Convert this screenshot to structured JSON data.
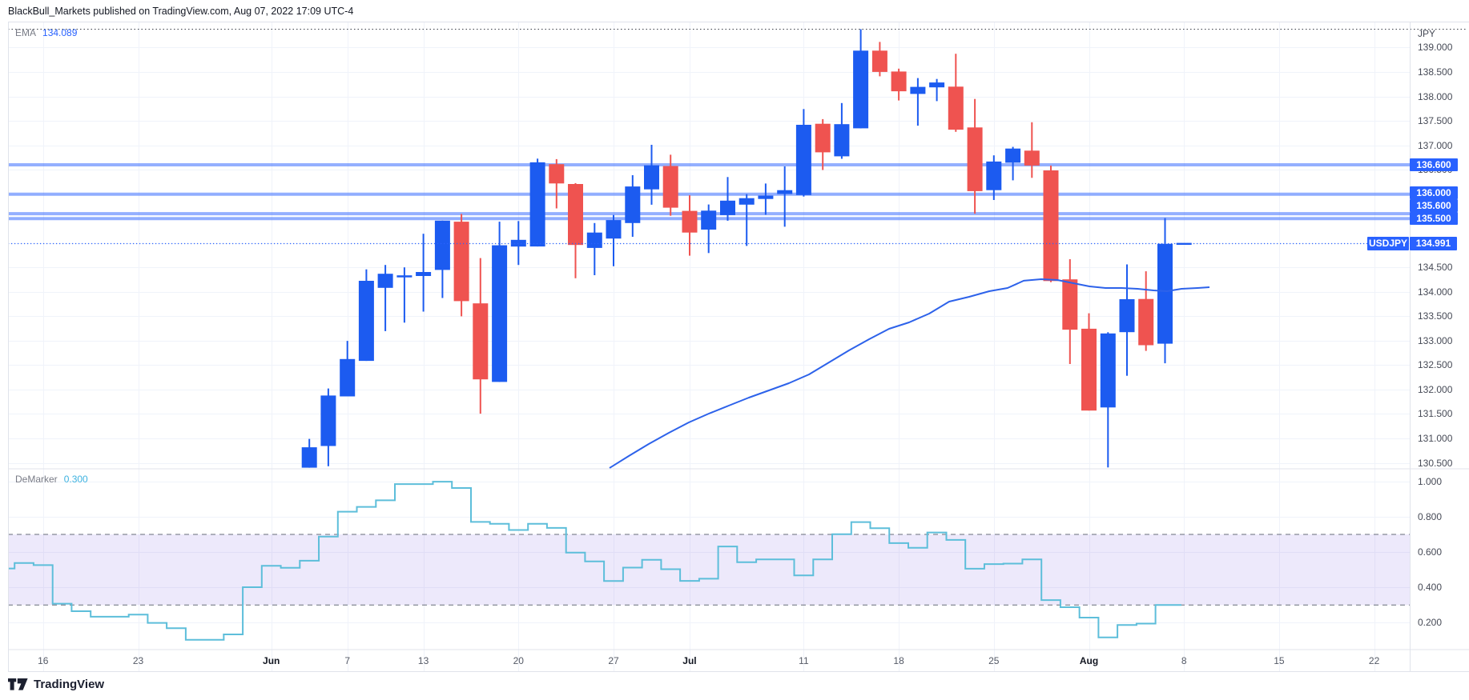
{
  "header": {
    "attribution": "BlackBull_Markets published on TradingView.com, Aug 07, 2022 17:09 UTC-4"
  },
  "footer": {
    "logo_text": "TradingView"
  },
  "chart_data": {
    "type": "candlestick",
    "symbol": "USDJPY",
    "timeframe_hint": "daily",
    "axis": {
      "currency": "JPY"
    },
    "last_price": 134.991,
    "last_price_label": "134.991",
    "price_ticks": [
      "139.000",
      "138.500",
      "138.000",
      "137.500",
      "137.000",
      "136.500",
      "136.000",
      "135.500",
      "135.000",
      "134.500",
      "134.000",
      "133.500",
      "133.000",
      "132.500",
      "132.000",
      "131.500",
      "131.000",
      "130.500"
    ],
    "ylim": [
      130.386,
      139.532
    ],
    "levels": [
      {
        "price": 136.6,
        "label": "136.600"
      },
      {
        "price": 136.0,
        "label": "136.000"
      },
      {
        "price": 135.6,
        "label": "135.600"
      },
      {
        "price": 135.5,
        "label": "135.500"
      }
    ],
    "x_ticks": [
      {
        "i": -12,
        "label": "16"
      },
      {
        "i": -7,
        "label": "23"
      },
      {
        "i": 0,
        "label": "Jun",
        "month": true
      },
      {
        "i": 4,
        "label": "7"
      },
      {
        "i": 8,
        "label": "13"
      },
      {
        "i": 13,
        "label": "20"
      },
      {
        "i": 18,
        "label": "27"
      },
      {
        "i": 22,
        "label": "Jul",
        "month": true
      },
      {
        "i": 28,
        "label": "11"
      },
      {
        "i": 33,
        "label": "18"
      },
      {
        "i": 38,
        "label": "25"
      },
      {
        "i": 43,
        "label": "Aug",
        "month": true
      },
      {
        "i": 48,
        "label": "8"
      },
      {
        "i": 53,
        "label": "15"
      },
      {
        "i": 58,
        "label": "22"
      }
    ],
    "candles_start_index": 2,
    "candles": [
      {
        "d": "Jun 3",
        "o": 130.4,
        "h": 130.99,
        "l": 130.4,
        "c": 130.818
      },
      {
        "d": "Jun 6",
        "o": 130.845,
        "h": 132.022,
        "l": 130.43,
        "c": 131.878
      },
      {
        "d": "Jun 7",
        "o": 131.86,
        "h": 132.997,
        "l": 131.86,
        "c": 132.625
      },
      {
        "d": "Jun 8",
        "o": 132.587,
        "h": 134.46,
        "l": 132.587,
        "c": 134.226
      },
      {
        "d": "Jun 9",
        "o": 134.082,
        "h": 134.55,
        "l": 133.196,
        "c": 134.37
      },
      {
        "d": "Jun 10",
        "o": 134.296,
        "h": 134.501,
        "l": 133.369,
        "c": 134.337
      },
      {
        "d": "Jun 13",
        "o": 134.324,
        "h": 135.189,
        "l": 133.595,
        "c": 134.406
      },
      {
        "d": "Jun 14",
        "o": 134.449,
        "h": 135.458,
        "l": 133.875,
        "c": 135.458
      },
      {
        "d": "Jun 15",
        "o": 135.436,
        "h": 135.594,
        "l": 133.5,
        "c": 133.81
      },
      {
        "d": "Jun 16",
        "o": 133.764,
        "h": 134.691,
        "l": 131.506,
        "c": 132.208
      },
      {
        "d": "Jun 17",
        "o": 132.156,
        "h": 135.436,
        "l": 132.156,
        "c": 134.953
      },
      {
        "d": "Jun 20",
        "o": 134.927,
        "h": 135.449,
        "l": 134.55,
        "c": 135.065
      },
      {
        "d": "Jun 21",
        "o": 134.929,
        "h": 136.727,
        "l": 134.929,
        "c": 136.652
      },
      {
        "d": "Jun 22",
        "o": 136.613,
        "h": 136.717,
        "l": 135.708,
        "c": 136.218
      },
      {
        "d": "Jun 23",
        "o": 136.208,
        "h": 136.226,
        "l": 134.279,
        "c": 134.96
      },
      {
        "d": "Jun 24",
        "o": 134.899,
        "h": 135.409,
        "l": 134.341,
        "c": 135.214
      },
      {
        "d": "Jun 27",
        "o": 135.091,
        "h": 135.574,
        "l": 134.524,
        "c": 135.469
      },
      {
        "d": "Jun 28",
        "o": 135.409,
        "h": 136.388,
        "l": 135.127,
        "c": 136.157
      },
      {
        "d": "Jun 29",
        "o": 136.098,
        "h": 137.01,
        "l": 135.783,
        "c": 136.591
      },
      {
        "d": "Jun 30",
        "o": 136.576,
        "h": 136.807,
        "l": 135.557,
        "c": 135.723
      },
      {
        "d": "Jul 1",
        "o": 135.657,
        "h": 135.976,
        "l": 134.74,
        "c": 135.214
      },
      {
        "d": "Jul 4",
        "o": 135.274,
        "h": 135.788,
        "l": 134.794,
        "c": 135.662
      },
      {
        "d": "Jul 5",
        "o": 135.57,
        "h": 136.35,
        "l": 135.456,
        "c": 135.867
      },
      {
        "d": "Jul 6",
        "o": 135.785,
        "h": 136.0,
        "l": 134.941,
        "c": 135.918
      },
      {
        "d": "Jul 7",
        "o": 135.901,
        "h": 136.217,
        "l": 135.578,
        "c": 135.97
      },
      {
        "d": "Jul 8",
        "o": 136.003,
        "h": 136.568,
        "l": 135.333,
        "c": 136.081
      },
      {
        "d": "Jul 11",
        "o": 135.983,
        "h": 137.742,
        "l": 135.95,
        "c": 137.42
      },
      {
        "d": "Jul 12",
        "o": 137.441,
        "h": 137.536,
        "l": 136.494,
        "c": 136.856
      },
      {
        "d": "Jul 13",
        "o": 136.774,
        "h": 137.865,
        "l": 136.723,
        "c": 137.432
      },
      {
        "d": "Jul 14",
        "o": 137.348,
        "h": 139.377,
        "l": 137.348,
        "c": 138.938
      },
      {
        "d": "Jul 15",
        "o": 138.938,
        "h": 139.116,
        "l": 138.412,
        "c": 138.502
      },
      {
        "d": "Jul 18",
        "o": 138.51,
        "h": 138.569,
        "l": 137.917,
        "c": 138.106
      },
      {
        "d": "Jul 19",
        "o": 138.052,
        "h": 138.376,
        "l": 137.402,
        "c": 138.196
      },
      {
        "d": "Jul 20",
        "o": 138.186,
        "h": 138.358,
        "l": 137.904,
        "c": 138.286
      },
      {
        "d": "Jul 21",
        "o": 138.201,
        "h": 138.874,
        "l": 137.276,
        "c": 137.32
      },
      {
        "d": "Jul 22",
        "o": 137.366,
        "h": 137.949,
        "l": 135.6,
        "c": 136.062
      },
      {
        "d": "Jul 25",
        "o": 136.082,
        "h": 136.794,
        "l": 135.88,
        "c": 136.668
      },
      {
        "d": "Jul 26",
        "o": 136.643,
        "h": 136.967,
        "l": 136.283,
        "c": 136.933
      },
      {
        "d": "Jul 27",
        "o": 136.89,
        "h": 137.472,
        "l": 136.334,
        "c": 136.586
      },
      {
        "d": "Jul 28",
        "o": 136.486,
        "h": 136.586,
        "l": 134.199,
        "c": 134.221
      },
      {
        "d": "Jul 29",
        "o": 134.255,
        "h": 134.669,
        "l": 132.524,
        "c": 133.225
      },
      {
        "d": "Aug 1",
        "o": 133.245,
        "h": 133.562,
        "l": 131.57,
        "c": 131.57
      },
      {
        "d": "Aug 2",
        "o": 131.633,
        "h": 133.173,
        "l": 130.405,
        "c": 133.148
      },
      {
        "d": "Aug 3",
        "o": 133.175,
        "h": 134.562,
        "l": 132.282,
        "c": 133.849
      },
      {
        "d": "Aug 4",
        "o": 133.854,
        "h": 134.421,
        "l": 132.791,
        "c": 132.908
      },
      {
        "d": "Aug 5",
        "o": 132.939,
        "h": 135.51,
        "l": 132.537,
        "c": 134.982
      }
    ],
    "ema": {
      "label": "EMA",
      "value": "134.089",
      "points": [
        [
          17.79,
          130.394
        ],
        [
          18.8,
          130.64
        ],
        [
          19.85,
          130.885
        ],
        [
          20.91,
          131.115
        ],
        [
          21.96,
          131.328
        ],
        [
          23.01,
          131.508
        ],
        [
          24.06,
          131.672
        ],
        [
          25.12,
          131.835
        ],
        [
          26.17,
          131.983
        ],
        [
          27.22,
          132.13
        ],
        [
          28.28,
          132.31
        ],
        [
          29.33,
          132.556
        ],
        [
          30.38,
          132.802
        ],
        [
          31.44,
          133.031
        ],
        [
          32.49,
          133.244
        ],
        [
          33.54,
          133.375
        ],
        [
          34.6,
          133.555
        ],
        [
          35.65,
          133.801
        ],
        [
          36.7,
          133.899
        ],
        [
          37.76,
          134.014
        ],
        [
          38.72,
          134.079
        ],
        [
          39.57,
          134.227
        ],
        [
          40.49,
          134.259
        ],
        [
          41.34,
          134.243
        ],
        [
          42.18,
          134.177
        ],
        [
          43.03,
          134.112
        ],
        [
          43.87,
          134.079
        ],
        [
          44.71,
          134.079
        ],
        [
          45.55,
          134.063
        ],
        [
          46.4,
          134.03
        ],
        [
          47.11,
          134.014
        ],
        [
          47.87,
          134.063
        ],
        [
          48.71,
          134.079
        ],
        [
          49.34,
          134.095
        ]
      ]
    },
    "demarker": {
      "label": "DeMarker",
      "value": "0.300",
      "value_color": "#3db2e0",
      "band": [
        0.3,
        0.7
      ],
      "dem_ticks": [
        "1.000",
        "0.800",
        "0.600",
        "0.400",
        "0.200"
      ],
      "vlim": [
        0.05,
        1.074
      ],
      "start_index": -14,
      "dates": [
        "May 12",
        "May 13",
        "May 16",
        "May 17",
        "May 18",
        "May 19",
        "May 20",
        "May 23",
        "May 24",
        "May 25",
        "May 26",
        "May 27",
        "May 30",
        "May 31",
        "Jun 1",
        "Jun 2",
        "Jun 3",
        "Jun 6",
        "Jun 7",
        "Jun 8",
        "Jun 9",
        "Jun 10",
        "Jun 13",
        "Jun 14",
        "Jun 15",
        "Jun 16",
        "Jun 17",
        "Jun 20",
        "Jun 21",
        "Jun 22",
        "Jun 23",
        "Jun 24",
        "Jun 27",
        "Jun 28",
        "Jun 29",
        "Jun 30",
        "Jul 1",
        "Jul 4",
        "Jul 5",
        "Jul 6",
        "Jul 7",
        "Jul 8",
        "Jul 11",
        "Jul 12",
        "Jul 13",
        "Jul 14",
        "Jul 15",
        "Jul 18",
        "Jul 19",
        "Jul 20",
        "Jul 21",
        "Jul 22",
        "Jul 25",
        "Jul 26",
        "Jul 27",
        "Jul 28",
        "Jul 29",
        "Aug 1",
        "Aug 2",
        "Aug 3",
        "Aug 4",
        "Aug 5"
      ],
      "values": [
        0.507,
        0.538,
        0.526,
        0.308,
        0.265,
        0.234,
        0.234,
        0.246,
        0.199,
        0.169,
        0.103,
        0.103,
        0.134,
        0.401,
        0.522,
        0.511,
        0.551,
        0.688,
        0.829,
        0.856,
        0.893,
        0.985,
        0.985,
        0.999,
        0.963,
        0.771,
        0.76,
        0.725,
        0.76,
        0.737,
        0.597,
        0.547,
        0.436,
        0.512,
        0.556,
        0.503,
        0.437,
        0.449,
        0.632,
        0.543,
        0.559,
        0.559,
        0.468,
        0.559,
        0.701,
        0.77,
        0.735,
        0.651,
        0.624,
        0.711,
        0.669,
        0.506,
        0.532,
        0.535,
        0.559,
        0.328,
        0.288,
        0.229,
        0.117,
        0.187,
        0.195,
        0.3
      ]
    },
    "colors": {
      "up": "#1c5bf0",
      "down": "#ef5350",
      "label_box": "#2962ff",
      "level_line": "rgba(41,98,255,0.50)",
      "ema_line": "#2d62ea",
      "dem_line": "#5dbeda",
      "band_fill": "rgba(124,98,230,0.14)",
      "band_edge": "#676d78",
      "grid": "#f0f3fa",
      "frame": "#e0e3eb",
      "price_dotted": "#2962ff",
      "top_dotted": "#3a3e47"
    }
  }
}
